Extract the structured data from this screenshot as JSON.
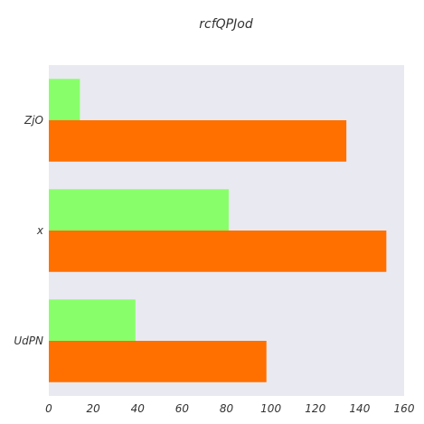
{
  "chart_data": {
    "type": "bar",
    "orientation": "horizontal",
    "title": "rcfQPJod",
    "xlabel": "",
    "ylabel": "",
    "categories": [
      "UdPN",
      "x",
      "ZjO"
    ],
    "series": [
      {
        "values": [
          98,
          152,
          134
        ],
        "color": "#ff7000"
      },
      {
        "values": [
          39,
          81,
          14
        ],
        "color": "#88ff6a"
      }
    ],
    "xlim": [
      0,
      160
    ],
    "xticks": [
      0,
      20,
      40,
      60,
      80,
      100,
      120,
      140,
      160
    ],
    "grid": false,
    "legend": "none",
    "plot_background": "#e9e9f1"
  }
}
